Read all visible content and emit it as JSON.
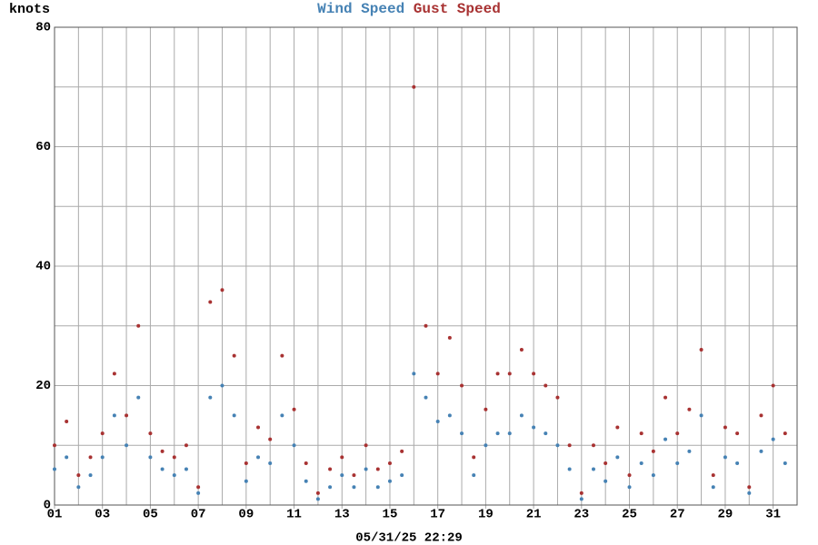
{
  "chart_data": {
    "type": "scatter",
    "y_label": "knots",
    "footer": "05/31/25 22:29",
    "x": [
      1.0,
      1.5,
      2.0,
      2.5,
      3.0,
      3.5,
      4.0,
      4.5,
      5.0,
      5.5,
      6.0,
      6.5,
      7.0,
      7.5,
      8.0,
      8.5,
      9.0,
      9.5,
      10.0,
      10.5,
      11.0,
      11.5,
      12.0,
      12.5,
      13.0,
      13.5,
      14.0,
      14.5,
      15.0,
      15.5,
      16.0,
      16.5,
      17.0,
      17.5,
      18.0,
      18.5,
      19.0,
      19.5,
      20.0,
      20.5,
      21.0,
      21.5,
      22.0,
      22.5,
      23.0,
      23.5,
      24.0,
      24.5,
      25.0,
      25.5,
      26.0,
      26.5,
      27.0,
      27.5,
      28.0,
      28.5,
      29.0,
      29.5,
      30.0,
      30.5,
      31.0,
      31.5
    ],
    "series": [
      {
        "name": "Gust Speed",
        "color": "#a83232",
        "values": [
          10,
          14,
          5,
          8,
          12,
          22,
          15,
          30,
          12,
          9,
          8,
          10,
          3,
          34,
          36,
          25,
          7,
          13,
          11,
          25,
          16,
          7,
          2,
          6,
          8,
          5,
          10,
          6,
          7,
          9,
          70,
          30,
          22,
          28,
          20,
          8,
          16,
          22,
          22,
          26,
          22,
          20,
          18,
          10,
          2,
          10,
          7,
          13,
          5,
          12,
          9,
          18,
          12,
          16,
          26,
          5,
          13,
          12,
          3,
          15,
          20,
          12
        ]
      },
      {
        "name": "Wind Speed",
        "color": "#4682b4",
        "values": [
          6,
          8,
          3,
          5,
          8,
          15,
          10,
          18,
          8,
          6,
          5,
          6,
          2,
          18,
          20,
          15,
          4,
          8,
          7,
          15,
          10,
          4,
          1,
          3,
          5,
          3,
          6,
          3,
          4,
          5,
          22,
          18,
          14,
          15,
          12,
          5,
          10,
          12,
          12,
          15,
          13,
          12,
          10,
          6,
          1,
          6,
          4,
          8,
          3,
          7,
          5,
          11,
          7,
          9,
          15,
          3,
          8,
          7,
          2,
          9,
          11,
          7
        ]
      }
    ],
    "xlim": [
      1,
      32
    ],
    "xticks": [
      {
        "value": 1,
        "label": "01"
      },
      {
        "value": 3,
        "label": "03"
      },
      {
        "value": 5,
        "label": "05"
      },
      {
        "value": 7,
        "label": "07"
      },
      {
        "value": 9,
        "label": "09"
      },
      {
        "value": 11,
        "label": "11"
      },
      {
        "value": 13,
        "label": "13"
      },
      {
        "value": 15,
        "label": "15"
      },
      {
        "value": 17,
        "label": "17"
      },
      {
        "value": 19,
        "label": "19"
      },
      {
        "value": 21,
        "label": "21"
      },
      {
        "value": 23,
        "label": "23"
      },
      {
        "value": 25,
        "label": "25"
      },
      {
        "value": 27,
        "label": "27"
      },
      {
        "value": 29,
        "label": "29"
      },
      {
        "value": 31,
        "label": "31"
      }
    ],
    "xgrid": [
      2,
      4,
      6,
      8,
      10,
      12,
      14,
      16,
      18,
      20,
      22,
      24,
      26,
      28,
      30,
      32
    ],
    "ylim": [
      0,
      80
    ],
    "yticks": [
      0,
      20,
      40,
      60,
      80
    ],
    "ygrid": [
      10,
      30,
      50,
      70
    ],
    "grid": true
  }
}
